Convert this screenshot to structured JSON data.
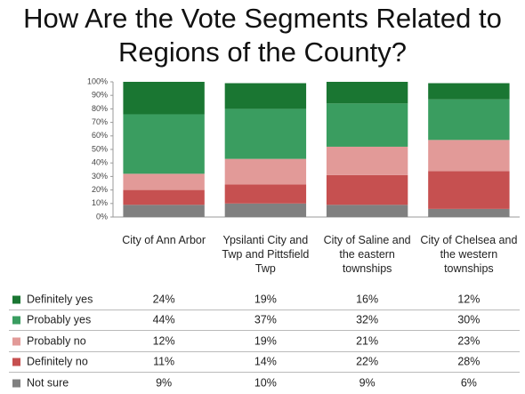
{
  "chart_data": {
    "type": "stacked_bar",
    "title": "How Are the Vote Segments Related to Regions of the County?",
    "categories": [
      "City of Ann Arbor",
      "Ypsilanti City and Twp and Pittsfield Twp",
      "City of Saline and the eastern townships",
      "City of Chelsea and the western townships"
    ],
    "ylim": [
      0,
      100
    ],
    "yticks": [
      {
        "value": 0,
        "label": "0%"
      },
      {
        "value": 10,
        "label": "10%"
      },
      {
        "value": 20,
        "label": "20%"
      },
      {
        "value": 30,
        "label": "30%"
      },
      {
        "value": 40,
        "label": "40%"
      },
      {
        "value": 50,
        "label": "50%"
      },
      {
        "value": 60,
        "label": "60%"
      },
      {
        "value": 70,
        "label": "70%"
      },
      {
        "value": 80,
        "label": "80%"
      },
      {
        "value": 90,
        "label": "90%"
      },
      {
        "value": 100,
        "label": "100%"
      }
    ],
    "series": [
      {
        "name": "Definitely yes",
        "color": "#1a7632",
        "values": [
          24,
          19,
          16,
          12
        ],
        "value_labels": [
          "24%",
          "19%",
          "16%",
          "12%"
        ]
      },
      {
        "name": "Probably yes",
        "color": "#3a9d60",
        "values": [
          44,
          37,
          32,
          30
        ],
        "value_labels": [
          "44%",
          "37%",
          "32%",
          "30%"
        ]
      },
      {
        "name": "Probably no",
        "color": "#e29a98",
        "values": [
          12,
          19,
          21,
          23
        ],
        "value_labels": [
          "12%",
          "19%",
          "21%",
          "23%"
        ]
      },
      {
        "name": "Definitely no",
        "color": "#c65050",
        "values": [
          11,
          14,
          22,
          28
        ],
        "value_labels": [
          "11%",
          "14%",
          "22%",
          "28%"
        ]
      },
      {
        "name": "Not sure",
        "color": "#808080",
        "values": [
          9,
          10,
          9,
          6
        ],
        "value_labels": [
          "9%",
          "10%",
          "9%",
          "6%"
        ]
      }
    ]
  }
}
